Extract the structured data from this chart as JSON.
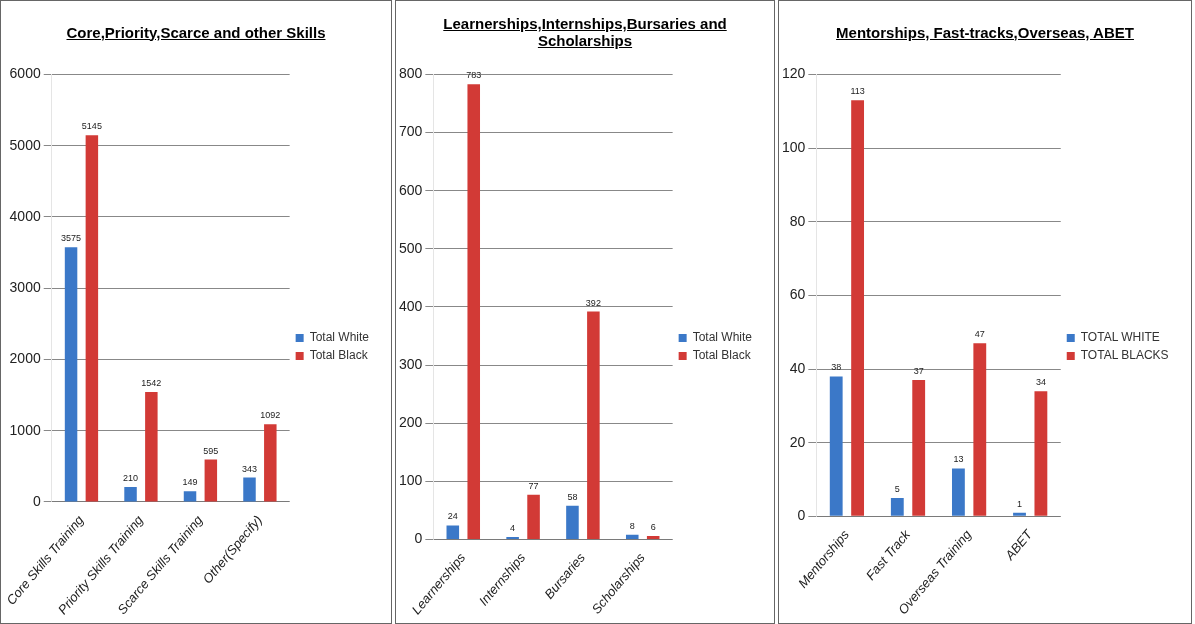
{
  "chart_data": [
    {
      "type": "bar",
      "title": "Core,Priority,Scarce and other Skills",
      "categories": [
        "Core Skills Training",
        "Priority Skills Training",
        "Scarce Skills Training",
        "Other(Specify)"
      ],
      "series": [
        {
          "name": "Total White",
          "color": "#3b78c8",
          "values": [
            3575,
            210,
            149,
            343
          ]
        },
        {
          "name": "Total Black",
          "color": "#d23a36",
          "values": [
            5145,
            1542,
            595,
            1092
          ]
        }
      ],
      "ylim": [
        0,
        6000
      ],
      "yticks": [
        0,
        1000,
        2000,
        3000,
        4000,
        5000,
        6000
      ],
      "grid": "y",
      "legend": "right",
      "data_labels": true
    },
    {
      "type": "bar",
      "title": "Learnerships,Internships,Bursaries and Scholarships",
      "categories": [
        "Learnerships",
        "Internships",
        "Bursaries",
        "Scholarships"
      ],
      "series": [
        {
          "name": "Total White",
          "color": "#3b78c8",
          "values": [
            24,
            4,
            58,
            8
          ]
        },
        {
          "name": "Total Black",
          "color": "#d23a36",
          "values": [
            783,
            77,
            392,
            6
          ]
        }
      ],
      "ylim": [
        0,
        800
      ],
      "yticks": [
        0,
        100,
        200,
        300,
        400,
        500,
        600,
        700,
        800
      ],
      "grid": "y",
      "legend": "right",
      "data_labels": true
    },
    {
      "type": "bar",
      "title": "Mentorships, Fast-tracks,Overseas, ABET",
      "categories": [
        "Mentorships",
        "Fast Track",
        "Overseas Training",
        "ABET"
      ],
      "series": [
        {
          "name": "TOTAL WHITE",
          "color": "#3b78c8",
          "values": [
            38,
            5,
            13,
            1
          ]
        },
        {
          "name": "TOTAL BLACKS",
          "color": "#d23a36",
          "values": [
            113,
            37,
            47,
            34
          ]
        }
      ],
      "ylim": [
        0,
        120
      ],
      "yticks": [
        0,
        20,
        40,
        60,
        80,
        100,
        120
      ],
      "grid": "y",
      "legend": "right",
      "data_labels": true
    }
  ]
}
